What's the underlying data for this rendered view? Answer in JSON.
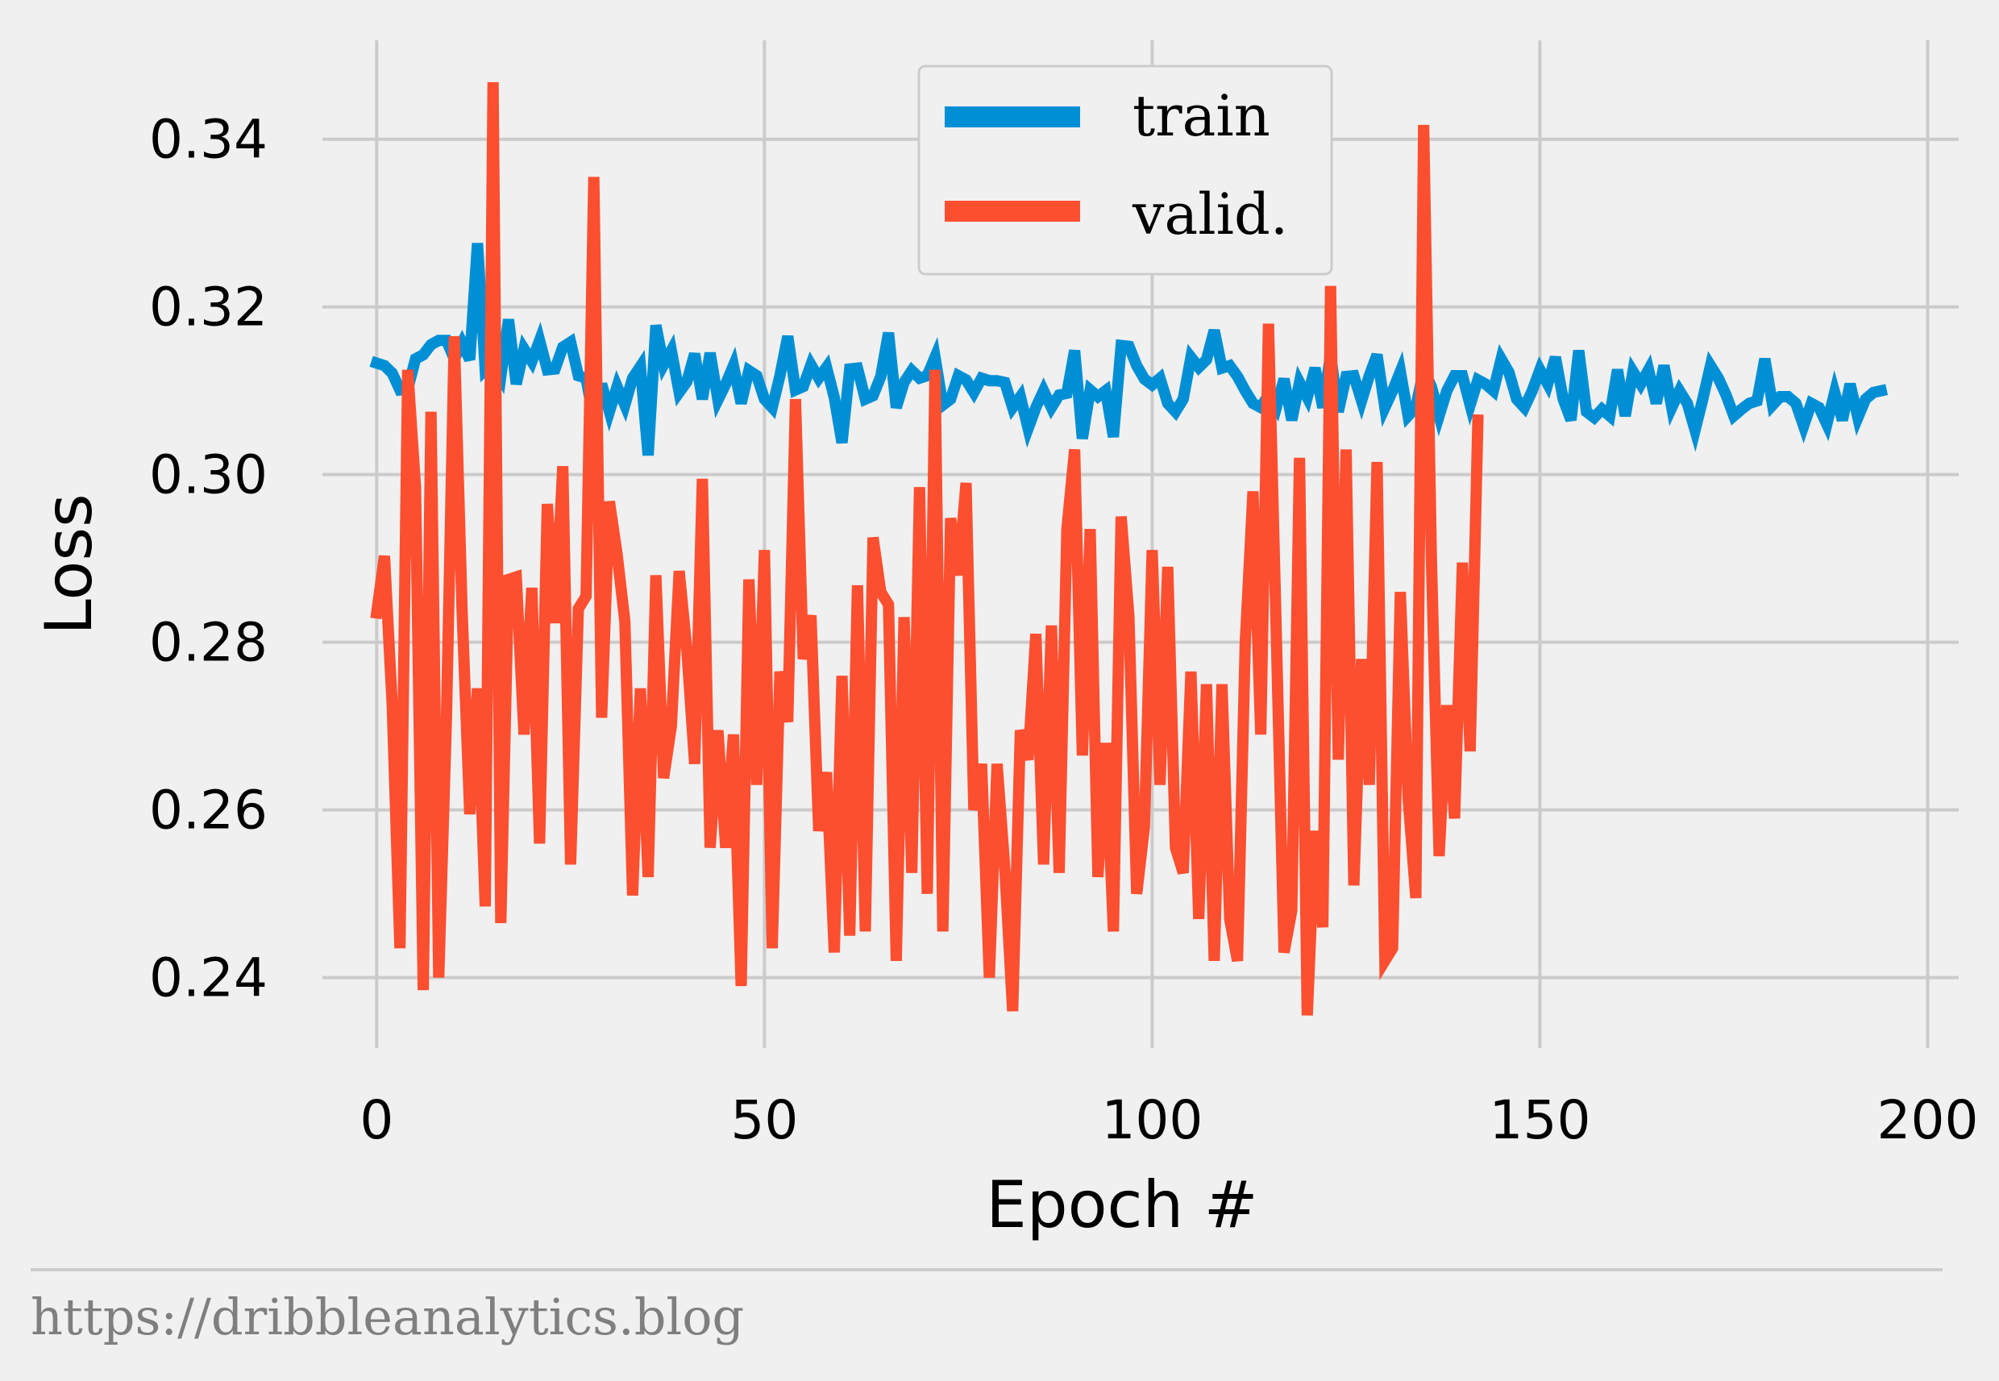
{
  "chart_data": {
    "type": "line",
    "xlabel": "Epoch #",
    "ylabel": "Loss",
    "xlim": [
      -7,
      204
    ],
    "ylim": [
      0.2316,
      0.3518
    ],
    "xticks": [
      0,
      50,
      100,
      150,
      200
    ],
    "yticks": [
      0.24,
      0.26,
      0.28,
      0.3,
      0.32,
      0.34
    ],
    "ytick_labels": [
      "0.24",
      "0.26",
      "0.28",
      "0.30",
      "0.32",
      "0.34"
    ],
    "grid": true,
    "legend_position": "top-center",
    "series": [
      {
        "name": "train",
        "color": "#008fd5",
        "values": [
          0.3133,
          0.313,
          0.3121,
          0.3101,
          0.3102,
          0.3138,
          0.3143,
          0.3155,
          0.316,
          0.316,
          0.3138,
          0.3157,
          0.3137,
          0.3276,
          0.3125,
          0.3134,
          0.3117,
          0.3185,
          0.3108,
          0.315,
          0.3135,
          0.316,
          0.3125,
          0.3126,
          0.3152,
          0.3158,
          0.3118,
          0.3115,
          0.3065,
          0.3108,
          0.3075,
          0.3105,
          0.3083,
          0.3115,
          0.3129,
          0.3023,
          0.3178,
          0.3131,
          0.3148,
          0.3098,
          0.3111,
          0.3144,
          0.309,
          0.3145,
          0.3089,
          0.3108,
          0.313,
          0.3085,
          0.3124,
          0.3118,
          0.309,
          0.308,
          0.3118,
          0.3165,
          0.3101,
          0.3105,
          0.3131,
          0.3115,
          0.3128,
          0.3092,
          0.3038,
          0.3126,
          0.3127,
          0.309,
          0.3094,
          0.3117,
          0.3169,
          0.308,
          0.311,
          0.3124,
          0.3115,
          0.3118,
          0.314,
          0.3083,
          0.309,
          0.3118,
          0.3113,
          0.3098,
          0.3115,
          0.3112,
          0.3112,
          0.311,
          0.308,
          0.3093,
          0.3055,
          0.308,
          0.31,
          0.308,
          0.3095,
          0.3097,
          0.3148,
          0.3043,
          0.3101,
          0.3093,
          0.31,
          0.3045,
          0.3154,
          0.3153,
          0.313,
          0.3114,
          0.3107,
          0.3115,
          0.3085,
          0.3075,
          0.309,
          0.314,
          0.3128,
          0.3137,
          0.3172,
          0.3127,
          0.313,
          0.3117,
          0.31,
          0.3085,
          0.308,
          0.3095,
          0.308,
          0.3114,
          0.3065,
          0.311,
          0.3092,
          0.3127,
          0.308,
          0.3143,
          0.3075,
          0.3117,
          0.3118,
          0.3088,
          0.3118,
          0.3143,
          0.308,
          0.31,
          0.3123,
          0.307,
          0.308,
          0.3125,
          0.3105,
          0.307,
          0.31,
          0.3118,
          0.3118,
          0.3083,
          0.3113,
          0.3108,
          0.31,
          0.3138,
          0.3122,
          0.309,
          0.308,
          0.31,
          0.3125,
          0.3108,
          0.314,
          0.309,
          0.3065,
          0.3148,
          0.3075,
          0.3068,
          0.3078,
          0.307,
          0.3125,
          0.307,
          0.3123,
          0.3108,
          0.3125,
          0.3085,
          0.313,
          0.308,
          0.31,
          0.3085,
          0.3053,
          0.309,
          0.313,
          0.3115,
          0.3095,
          0.307,
          0.3078,
          0.3085,
          0.3088,
          0.3138,
          0.3083,
          0.3093,
          0.3093,
          0.3085,
          0.3058,
          0.3085,
          0.308,
          0.306,
          0.3098,
          0.3065,
          0.3108,
          0.3068,
          0.309,
          0.3098,
          0.31
        ]
      },
      {
        "name": "valid.",
        "color": "#fc4f30",
        "values": [
          0.2835,
          0.2903,
          0.2725,
          0.2435,
          0.3125,
          0.2985,
          0.2385,
          0.3075,
          0.24,
          0.271,
          0.3165,
          0.284,
          0.2595,
          0.2745,
          0.2485,
          0.3468,
          0.2465,
          0.2875,
          0.2878,
          0.269,
          0.2865,
          0.256,
          0.2965,
          0.2823,
          0.301,
          0.2535,
          0.284,
          0.2855,
          0.3355,
          0.271,
          0.2968,
          0.2905,
          0.2825,
          0.2498,
          0.2745,
          0.252,
          0.288,
          0.2638,
          0.27,
          0.2885,
          0.279,
          0.2655,
          0.2995,
          0.2555,
          0.2695,
          0.2555,
          0.269,
          0.239,
          0.2875,
          0.263,
          0.291,
          0.2435,
          0.2765,
          0.2705,
          0.309,
          0.278,
          0.2832,
          0.2575,
          0.2645,
          0.243,
          0.276,
          0.245,
          0.2868,
          0.2455,
          0.2925,
          0.286,
          0.2845,
          0.242,
          0.283,
          0.2525,
          0.2985,
          0.25,
          0.3125,
          0.2455,
          0.2948,
          0.288,
          0.299,
          0.26,
          0.2655,
          0.24,
          0.2655,
          0.253,
          0.236,
          0.2695,
          0.266,
          0.281,
          0.2535,
          0.282,
          0.2525,
          0.2935,
          0.303,
          0.2665,
          0.2935,
          0.252,
          0.268,
          0.2455,
          0.295,
          0.283,
          0.25,
          0.258,
          0.291,
          0.263,
          0.289,
          0.2555,
          0.2525,
          0.2765,
          0.247,
          0.275,
          0.242,
          0.275,
          0.247,
          0.242,
          0.28,
          0.298,
          0.269,
          0.318,
          0.281,
          0.243,
          0.248,
          0.302,
          0.2355,
          0.2575,
          0.246,
          0.3225,
          0.266,
          0.303,
          0.251,
          0.278,
          0.263,
          0.3015,
          0.242,
          0.2435,
          0.286,
          0.2615,
          0.2495,
          0.3417,
          0.29,
          0.2545,
          0.2725,
          0.259,
          0.2895,
          0.267,
          0.3065
        ]
      }
    ]
  },
  "footer": {
    "source_text": "https://dribbleanalytics.blog"
  }
}
